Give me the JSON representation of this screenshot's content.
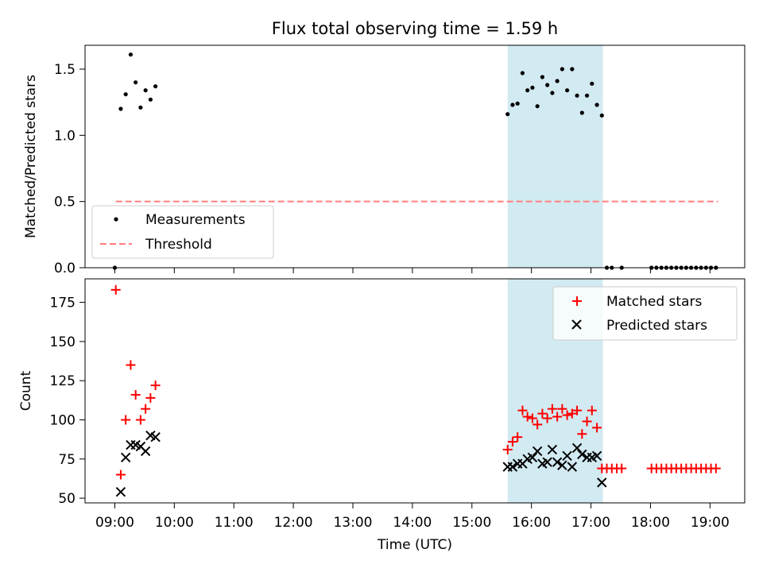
{
  "colors": {
    "measurement": "#000000",
    "threshold": "#ff7f7f",
    "matched": "#ff0000",
    "predicted": "#000000",
    "highlight": "#add8e6"
  },
  "chart_data": [
    {
      "type": "scatter",
      "title": "Flux total observing time = 1.59 h",
      "xlabel": "",
      "ylabel": "Matched/Predicted stars",
      "xlim": [
        "08:30",
        "19:35"
      ],
      "ylim": [
        0,
        1.68
      ],
      "yticks": [
        "0.0",
        "0.5",
        "1.0",
        "1.5"
      ],
      "grid": false,
      "legend_position": "lower-left",
      "highlight_span": [
        "15:36",
        "17:12"
      ],
      "threshold": {
        "name": "Threshold",
        "y": 0.5,
        "x": [
          "09:01",
          "19:08"
        ]
      },
      "series": [
        {
          "name": "Measurements",
          "points": [
            [
              "09:00",
              0.0
            ],
            [
              "09:06",
              1.2
            ],
            [
              "09:11",
              1.31
            ],
            [
              "09:16",
              1.61
            ],
            [
              "09:21",
              1.4
            ],
            [
              "09:26",
              1.21
            ],
            [
              "09:31",
              1.34
            ],
            [
              "09:36",
              1.27
            ],
            [
              "09:41",
              1.37
            ],
            [
              "15:36",
              1.16
            ],
            [
              "15:41",
              1.23
            ],
            [
              "15:46",
              1.24
            ],
            [
              "15:51",
              1.47
            ],
            [
              "15:56",
              1.34
            ],
            [
              "16:01",
              1.36
            ],
            [
              "16:06",
              1.22
            ],
            [
              "16:11",
              1.44
            ],
            [
              "16:16",
              1.38
            ],
            [
              "16:21",
              1.32
            ],
            [
              "16:26",
              1.41
            ],
            [
              "16:31",
              1.5
            ],
            [
              "16:36",
              1.34
            ],
            [
              "16:41",
              1.5
            ],
            [
              "16:46",
              1.3
            ],
            [
              "16:51",
              1.17
            ],
            [
              "16:56",
              1.3
            ],
            [
              "17:01",
              1.39
            ],
            [
              "17:06",
              1.23
            ],
            [
              "17:11",
              1.15
            ],
            [
              "17:16",
              0.0
            ],
            [
              "17:21",
              0.0
            ],
            [
              "17:31",
              0.0
            ],
            [
              "18:01",
              0.0
            ],
            [
              "18:06",
              0.0
            ],
            [
              "18:11",
              0.0
            ],
            [
              "18:16",
              0.0
            ],
            [
              "18:21",
              0.0
            ],
            [
              "18:26",
              0.0
            ],
            [
              "18:31",
              0.0
            ],
            [
              "18:36",
              0.0
            ],
            [
              "18:41",
              0.0
            ],
            [
              "18:46",
              0.0
            ],
            [
              "18:51",
              0.0
            ],
            [
              "18:56",
              0.0
            ],
            [
              "19:01",
              0.0
            ],
            [
              "19:06",
              0.0
            ]
          ]
        }
      ]
    },
    {
      "type": "scatter",
      "title": "",
      "xlabel": "Time (UTC)",
      "ylabel": "Count",
      "xlim": [
        "08:30",
        "19:35"
      ],
      "ylim": [
        47,
        190
      ],
      "yticks": [
        "50",
        "75",
        "100",
        "125",
        "150",
        "175"
      ],
      "xticks": [
        "09:00",
        "10:00",
        "11:00",
        "12:00",
        "13:00",
        "14:00",
        "15:00",
        "16:00",
        "17:00",
        "18:00",
        "19:00"
      ],
      "grid": false,
      "legend_position": "upper-right",
      "highlight_span": [
        "15:36",
        "17:12"
      ],
      "series": [
        {
          "name": "Matched stars",
          "marker": "+",
          "points": [
            [
              "09:01",
              183
            ],
            [
              "09:06",
              65
            ],
            [
              "09:11",
              100
            ],
            [
              "09:16",
              135
            ],
            [
              "09:21",
              116
            ],
            [
              "09:26",
              100
            ],
            [
              "09:31",
              107
            ],
            [
              "09:36",
              114
            ],
            [
              "09:41",
              122
            ],
            [
              "15:36",
              81
            ],
            [
              "15:41",
              86
            ],
            [
              "15:46",
              89
            ],
            [
              "15:51",
              106
            ],
            [
              "15:56",
              102
            ],
            [
              "16:01",
              101
            ],
            [
              "16:06",
              97
            ],
            [
              "16:11",
              104
            ],
            [
              "16:16",
              101
            ],
            [
              "16:21",
              107
            ],
            [
              "16:26",
              102
            ],
            [
              "16:31",
              107
            ],
            [
              "16:36",
              103
            ],
            [
              "16:41",
              104
            ],
            [
              "16:46",
              106
            ],
            [
              "16:51",
              91
            ],
            [
              "16:56",
              99
            ],
            [
              "17:01",
              106
            ],
            [
              "17:06",
              95
            ],
            [
              "17:11",
              69
            ],
            [
              "17:16",
              69
            ],
            [
              "17:21",
              69
            ],
            [
              "17:26",
              69
            ],
            [
              "17:31",
              69
            ],
            [
              "18:01",
              69
            ],
            [
              "18:06",
              69
            ],
            [
              "18:11",
              69
            ],
            [
              "18:16",
              69
            ],
            [
              "18:21",
              69
            ],
            [
              "18:26",
              69
            ],
            [
              "18:31",
              69
            ],
            [
              "18:36",
              69
            ],
            [
              "18:41",
              69
            ],
            [
              "18:46",
              69
            ],
            [
              "18:51",
              69
            ],
            [
              "18:56",
              69
            ],
            [
              "19:01",
              69
            ],
            [
              "19:06",
              69
            ]
          ]
        },
        {
          "name": "Predicted stars",
          "marker": "x",
          "points": [
            [
              "09:06",
              54
            ],
            [
              "09:11",
              76
            ],
            [
              "09:16",
              84
            ],
            [
              "09:21",
              84
            ],
            [
              "09:26",
              83
            ],
            [
              "09:31",
              80
            ],
            [
              "09:36",
              90
            ],
            [
              "09:41",
              89
            ],
            [
              "15:36",
              70
            ],
            [
              "15:41",
              70
            ],
            [
              "15:46",
              72
            ],
            [
              "15:51",
              72
            ],
            [
              "15:56",
              75
            ],
            [
              "16:01",
              76
            ],
            [
              "16:06",
              80
            ],
            [
              "16:11",
              72
            ],
            [
              "16:16",
              73
            ],
            [
              "16:21",
              81
            ],
            [
              "16:26",
              73
            ],
            [
              "16:31",
              71
            ],
            [
              "16:36",
              77
            ],
            [
              "16:41",
              70
            ],
            [
              "16:46",
              82
            ],
            [
              "16:51",
              78
            ],
            [
              "16:56",
              76
            ],
            [
              "17:01",
              76
            ],
            [
              "17:06",
              77
            ],
            [
              "17:11",
              60
            ]
          ]
        }
      ]
    }
  ]
}
